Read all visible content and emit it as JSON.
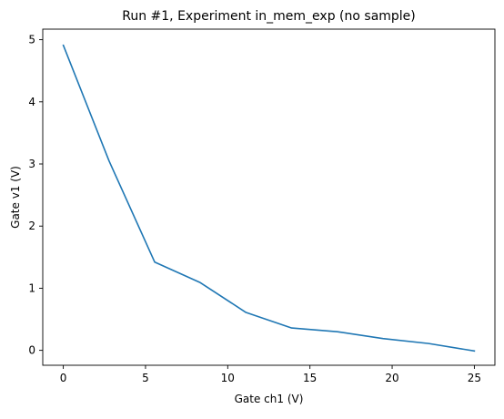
{
  "chart_data": {
    "type": "line",
    "title": "Run #1, Experiment in_mem_exp (no sample)",
    "xlabel": "Gate ch1 (V)",
    "ylabel": "Gate v1 (V)",
    "xlim": [
      -1.25,
      26.25
    ],
    "ylim": [
      -0.24,
      5.17
    ],
    "xticks": [
      0,
      5,
      10,
      15,
      20,
      25
    ],
    "yticks": [
      0,
      1,
      2,
      3,
      4,
      5
    ],
    "grid": false,
    "series": [
      {
        "color": "#1f77b4",
        "x": [
          0.0,
          2.78,
          5.56,
          8.33,
          11.11,
          13.89,
          16.67,
          19.44,
          22.22,
          25.0
        ],
        "y": [
          4.91,
          3.05,
          1.42,
          1.09,
          0.61,
          0.36,
          0.3,
          0.19,
          0.11,
          -0.01
        ]
      }
    ]
  }
}
